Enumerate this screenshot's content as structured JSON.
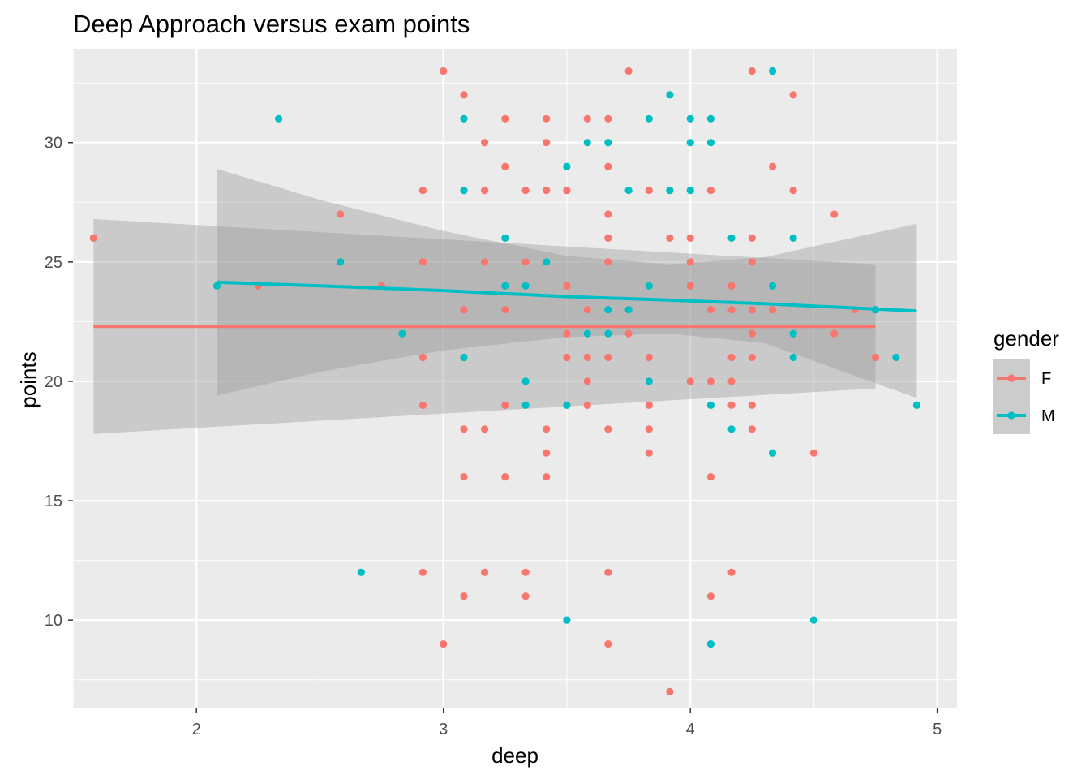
{
  "chart_data": {
    "type": "scatter",
    "title": "Deep Approach versus exam points",
    "xlabel": "deep",
    "ylabel": "points",
    "xlim": [
      1.5,
      5.08
    ],
    "ylim": [
      6.3,
      33.9
    ],
    "x_ticks": [
      2,
      3,
      4,
      5
    ],
    "x_tick_labels": [
      "2",
      "3",
      "4",
      "5"
    ],
    "y_ticks": [
      10,
      15,
      20,
      25,
      30
    ],
    "y_tick_labels": [
      "10",
      "15",
      "20",
      "25",
      "30"
    ],
    "grid": true,
    "legend": {
      "title": "gender",
      "placement": "right"
    },
    "series": [
      {
        "name": "F",
        "color": "#F8766D",
        "points": [
          [
            1.583,
            26
          ],
          [
            2.25,
            24
          ],
          [
            2.583,
            27
          ],
          [
            2.75,
            24
          ],
          [
            2.917,
            28
          ],
          [
            2.917,
            25
          ],
          [
            2.917,
            21
          ],
          [
            2.917,
            19
          ],
          [
            2.917,
            12
          ],
          [
            3.0,
            33
          ],
          [
            3.0,
            9
          ],
          [
            3.083,
            32
          ],
          [
            3.083,
            23
          ],
          [
            3.083,
            18
          ],
          [
            3.083,
            16
          ],
          [
            3.083,
            11
          ],
          [
            3.167,
            30
          ],
          [
            3.167,
            28
          ],
          [
            3.167,
            25
          ],
          [
            3.167,
            18
          ],
          [
            3.167,
            12
          ],
          [
            3.25,
            31
          ],
          [
            3.25,
            29
          ],
          [
            3.25,
            23
          ],
          [
            3.25,
            19
          ],
          [
            3.25,
            16
          ],
          [
            3.333,
            28
          ],
          [
            3.333,
            25
          ],
          [
            3.333,
            12
          ],
          [
            3.333,
            11
          ],
          [
            3.417,
            31
          ],
          [
            3.417,
            30
          ],
          [
            3.417,
            28
          ],
          [
            3.417,
            18
          ],
          [
            3.417,
            17
          ],
          [
            3.417,
            16
          ],
          [
            3.5,
            28
          ],
          [
            3.5,
            24
          ],
          [
            3.5,
            22
          ],
          [
            3.5,
            21
          ],
          [
            3.583,
            31
          ],
          [
            3.583,
            23
          ],
          [
            3.583,
            21
          ],
          [
            3.583,
            20
          ],
          [
            3.583,
            19
          ],
          [
            3.667,
            31
          ],
          [
            3.667,
            29
          ],
          [
            3.667,
            27
          ],
          [
            3.667,
            26
          ],
          [
            3.667,
            25
          ],
          [
            3.667,
            21
          ],
          [
            3.667,
            18
          ],
          [
            3.667,
            12
          ],
          [
            3.667,
            9
          ],
          [
            3.75,
            33
          ],
          [
            3.75,
            22
          ],
          [
            3.833,
            28
          ],
          [
            3.833,
            21
          ],
          [
            3.833,
            19
          ],
          [
            3.833,
            18
          ],
          [
            3.833,
            17
          ],
          [
            3.917,
            26
          ],
          [
            3.917,
            7
          ],
          [
            4.0,
            26
          ],
          [
            4.0,
            25
          ],
          [
            4.0,
            24
          ],
          [
            4.0,
            20
          ],
          [
            4.083,
            28
          ],
          [
            4.083,
            23
          ],
          [
            4.083,
            20
          ],
          [
            4.083,
            16
          ],
          [
            4.083,
            11
          ],
          [
            4.167,
            24
          ],
          [
            4.167,
            23
          ],
          [
            4.167,
            21
          ],
          [
            4.167,
            20
          ],
          [
            4.167,
            19
          ],
          [
            4.167,
            12
          ],
          [
            4.25,
            33
          ],
          [
            4.25,
            26
          ],
          [
            4.25,
            25
          ],
          [
            4.25,
            23
          ],
          [
            4.25,
            22
          ],
          [
            4.25,
            21
          ],
          [
            4.25,
            19
          ],
          [
            4.25,
            18
          ],
          [
            4.333,
            29
          ],
          [
            4.333,
            23
          ],
          [
            4.417,
            32
          ],
          [
            4.417,
            28
          ],
          [
            4.5,
            17
          ],
          [
            4.583,
            27
          ],
          [
            4.583,
            22
          ],
          [
            4.667,
            23
          ],
          [
            4.75,
            21
          ]
        ],
        "fit": {
          "x": [
            1.583,
            4.75
          ],
          "y": [
            22.3,
            22.3
          ],
          "ci_lower": [
            17.8,
            19.7
          ],
          "ci_upper": [
            26.8,
            24.9
          ]
        }
      },
      {
        "name": "M",
        "color": "#00BFC4",
        "points": [
          [
            2.083,
            24
          ],
          [
            2.333,
            31
          ],
          [
            2.583,
            25
          ],
          [
            2.667,
            12
          ],
          [
            2.833,
            22
          ],
          [
            3.083,
            31
          ],
          [
            3.083,
            28
          ],
          [
            3.083,
            21
          ],
          [
            3.25,
            26
          ],
          [
            3.25,
            24
          ],
          [
            3.333,
            24
          ],
          [
            3.333,
            20
          ],
          [
            3.333,
            19
          ],
          [
            3.417,
            25
          ],
          [
            3.5,
            29
          ],
          [
            3.5,
            19
          ],
          [
            3.5,
            10
          ],
          [
            3.583,
            30
          ],
          [
            3.583,
            22
          ],
          [
            3.667,
            30
          ],
          [
            3.667,
            23
          ],
          [
            3.667,
            22
          ],
          [
            3.75,
            28
          ],
          [
            3.75,
            23
          ],
          [
            3.833,
            31
          ],
          [
            3.833,
            24
          ],
          [
            3.833,
            20
          ],
          [
            3.917,
            32
          ],
          [
            3.917,
            28
          ],
          [
            4.0,
            31
          ],
          [
            4.0,
            30
          ],
          [
            4.0,
            28
          ],
          [
            4.083,
            31
          ],
          [
            4.083,
            30
          ],
          [
            4.083,
            19
          ],
          [
            4.083,
            9
          ],
          [
            4.167,
            26
          ],
          [
            4.167,
            18
          ],
          [
            4.333,
            33
          ],
          [
            4.333,
            24
          ],
          [
            4.333,
            17
          ],
          [
            4.417,
            26
          ],
          [
            4.417,
            22
          ],
          [
            4.417,
            21
          ],
          [
            4.5,
            10
          ],
          [
            4.75,
            23
          ],
          [
            4.833,
            21
          ],
          [
            4.917,
            19
          ]
        ],
        "fit": {
          "x": [
            2.083,
            2.5,
            3.0,
            3.5,
            3.917,
            4.3,
            4.917
          ],
          "y": [
            24.15,
            24.0,
            23.8,
            23.55,
            23.4,
            23.25,
            22.95
          ],
          "ci_lower": [
            19.4,
            20.4,
            21.3,
            21.85,
            22.0,
            21.6,
            19.3
          ],
          "ci_upper": [
            28.9,
            27.6,
            26.3,
            25.25,
            24.9,
            25.2,
            26.6
          ]
        }
      }
    ]
  }
}
